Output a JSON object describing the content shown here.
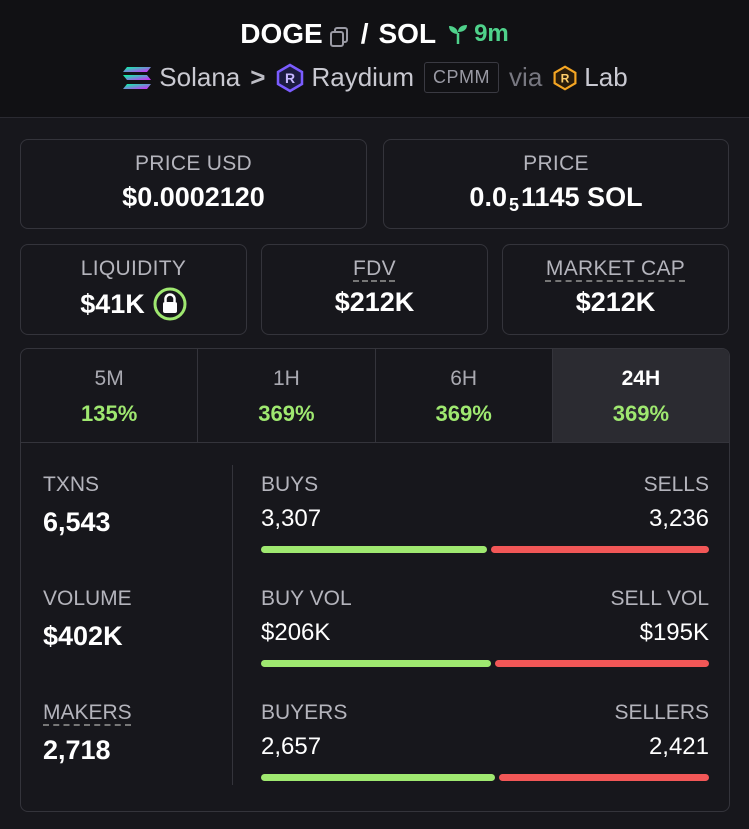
{
  "header": {
    "base_token": "DOGE",
    "separator": "/",
    "quote_token": "SOL",
    "age": "9m",
    "chain": "Solana",
    "dex": "Raydium",
    "pool_type": "CPMM",
    "via_label": "via",
    "launchpad": "Lab"
  },
  "price_usd": {
    "label": "PRICE USD",
    "value": "$0.0002120"
  },
  "price_native": {
    "label": "PRICE",
    "prefix": "0.0",
    "subscript": "5",
    "suffix": "1145 SOL"
  },
  "liquidity": {
    "label": "LIQUIDITY",
    "value": "$41K"
  },
  "fdv": {
    "label": "FDV",
    "value": "$212K"
  },
  "market_cap": {
    "label": "MARKET CAP",
    "value": "$212K"
  },
  "tabs": [
    {
      "label": "5M",
      "value": "135%"
    },
    {
      "label": "1H",
      "value": "369%"
    },
    {
      "label": "6H",
      "value": "369%"
    },
    {
      "label": "24H",
      "value": "369%"
    }
  ],
  "stats": {
    "txns": {
      "label": "TXNS",
      "value": "6,543"
    },
    "volume": {
      "label": "VOLUME",
      "value": "$402K"
    },
    "makers": {
      "label": "MAKERS",
      "value": "2,718"
    },
    "buys_sells": {
      "left_label": "BUYS",
      "left_value": "3,307",
      "right_label": "SELLS",
      "right_value": "3,236",
      "buy_ratio": 0.505
    },
    "vol": {
      "left_label": "BUY VOL",
      "left_value": "$206K",
      "right_label": "SELL VOL",
      "right_value": "$195K",
      "buy_ratio": 0.514
    },
    "buyers_sellers": {
      "left_label": "BUYERS",
      "left_value": "2,657",
      "right_label": "SELLERS",
      "right_value": "2,421",
      "buy_ratio": 0.523
    }
  },
  "colors": {
    "positive": "#9fe870",
    "negative": "#f25757",
    "age": "#4fd18b"
  }
}
